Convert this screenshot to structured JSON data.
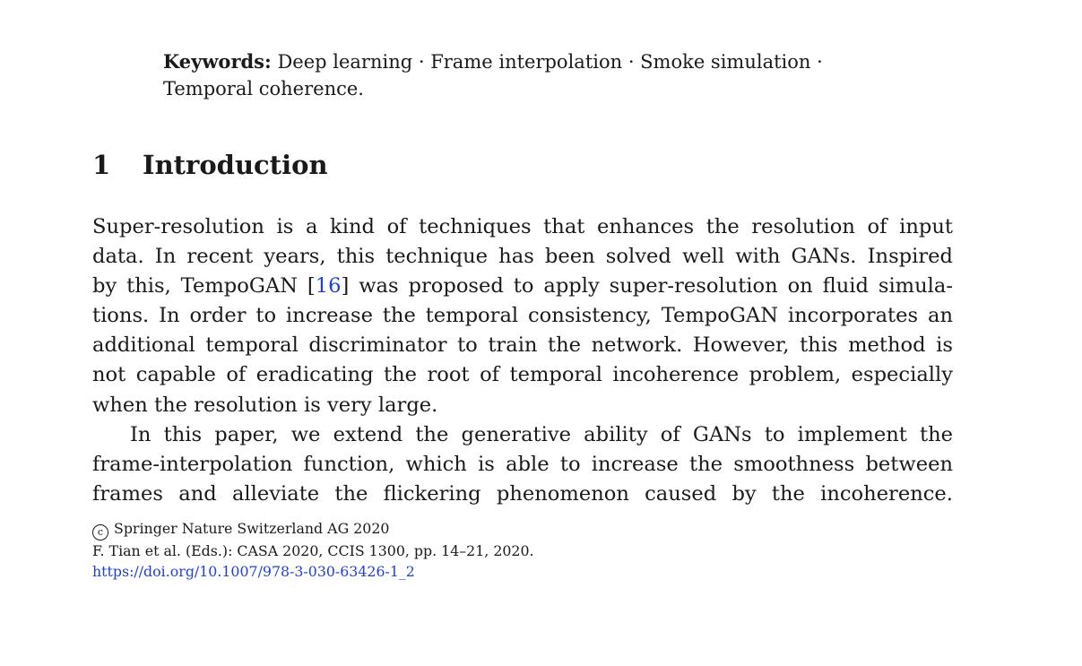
{
  "keywords": {
    "label": "Keywords:",
    "line1": "Deep learning · Frame interpolation · Smoke simulation ·",
    "line2": "Temporal coherence."
  },
  "section": {
    "number": "1",
    "title": "Introduction"
  },
  "paragraph1": {
    "line1": "Super-resolution is a kind of techniques that enhances the resolution of input",
    "line2": "data. In recent years, this technique has been solved well with GANs. Inspired",
    "line3_pre": "by this, TempoGAN [",
    "line3_cite": "16",
    "line3_post": "] was proposed to apply super-resolution on fluid simula-",
    "line4": "tions. In order to increase the temporal consistency, TempoGAN incorporates an",
    "line5": "additional temporal discriminator to train the network. However, this method is",
    "line6": "not capable of eradicating the root of temporal incoherence problem, especially",
    "line7": "when the resolution is very large."
  },
  "paragraph2": {
    "line1": "In this paper, we extend the generative ability of GANs to implement the",
    "line2": "frame-interpolation function, which is able to increase the smoothness between",
    "line3": "frames and alleviate the flickering phenomenon caused by the incoherence."
  },
  "footer": {
    "copyright_symbol": "c",
    "copyright": "Springer Nature Switzerland AG 2020",
    "citation": "F. Tian et al. (Eds.): CASA 2020, CCIS 1300, pp. 14–21, 2020.",
    "doi": "https://doi.org/10.1007/978-3-030-63426-1_2"
  },
  "colors": {
    "link": "#1f3fd6",
    "text": "#1a1a1a"
  }
}
